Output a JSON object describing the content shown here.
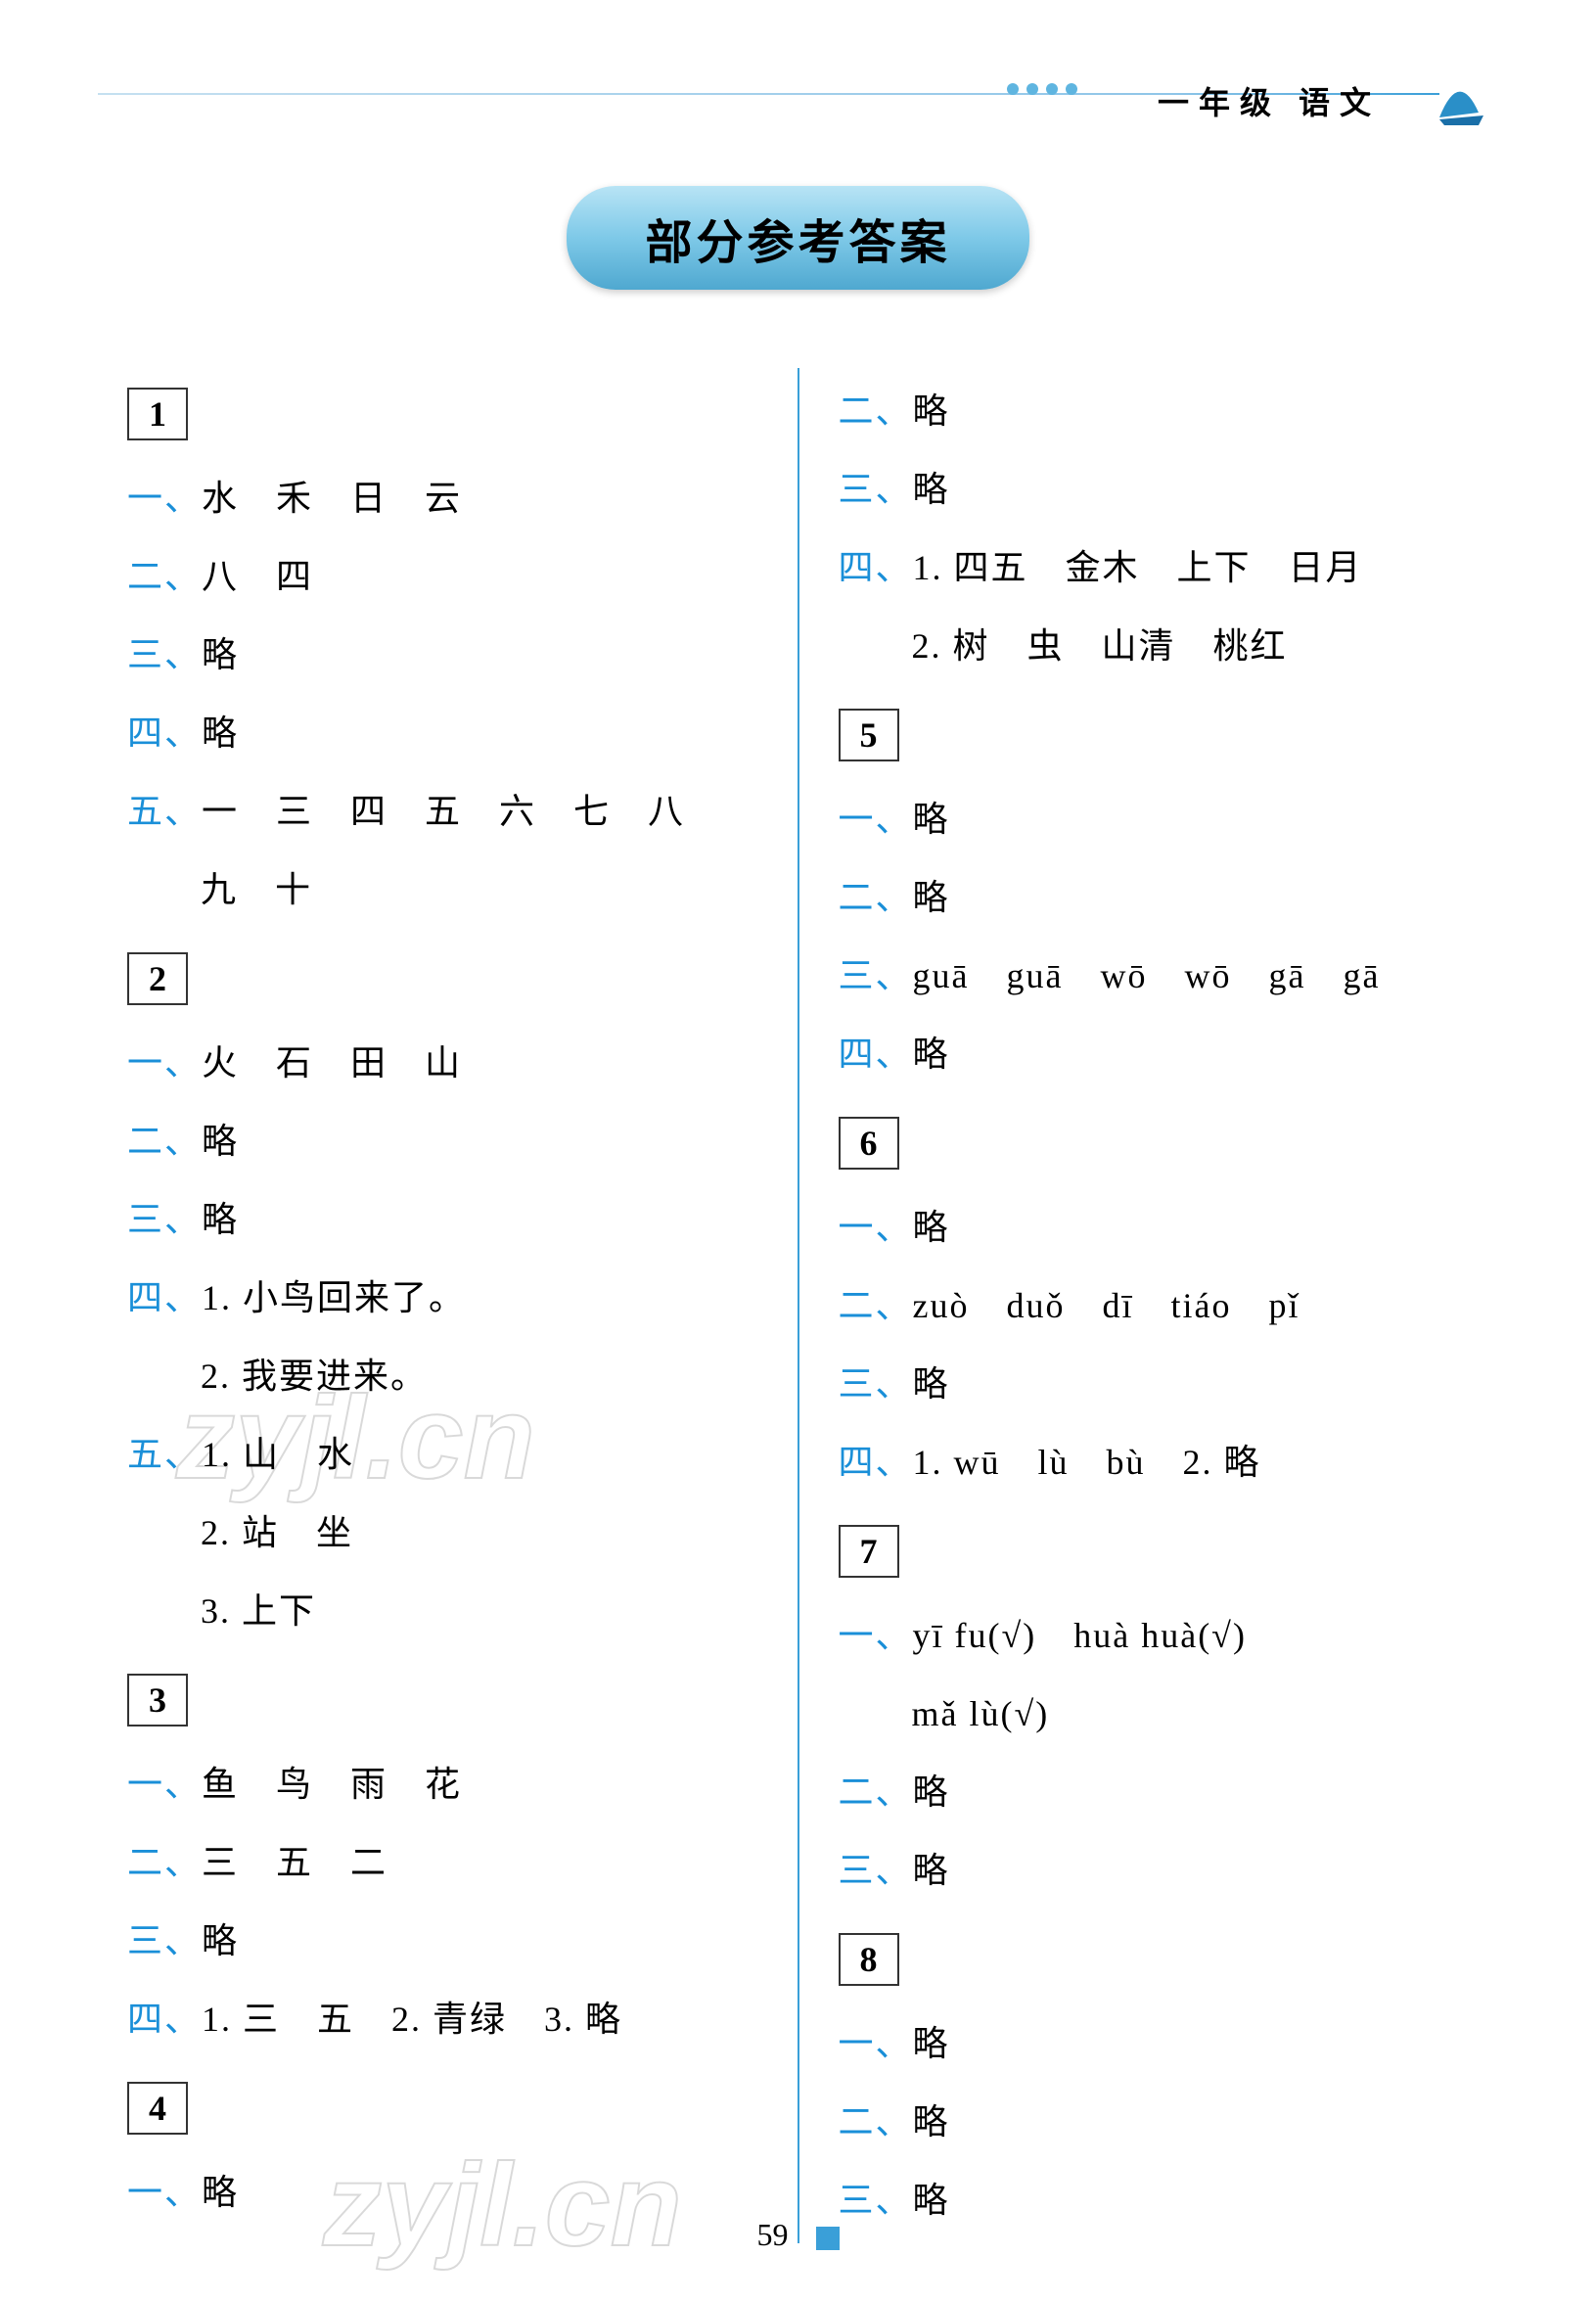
{
  "header": {
    "grade": "一年级",
    "subject": "语文"
  },
  "title": "部分参考答案",
  "colors": {
    "accent": "#1a8fd8",
    "border": "#333333",
    "pill_gradient_start": "#b8e4f5",
    "pill_gradient_end": "#4fa8d0",
    "divider": "#3a9fd8"
  },
  "watermark": "zyjl.cn",
  "page_number": "59",
  "left_column": {
    "sections": [
      {
        "num": "1",
        "lines": [
          {
            "prefix": "一、",
            "text": "水　禾　日　云"
          },
          {
            "prefix": "二、",
            "text": "八　四"
          },
          {
            "prefix": "三、",
            "text": "略"
          },
          {
            "prefix": "四、",
            "text": "略"
          },
          {
            "prefix": "五、",
            "text": "一　三　四　五　六　七　八"
          },
          {
            "prefix": "",
            "text": "九　十",
            "indent": true
          }
        ]
      },
      {
        "num": "2",
        "lines": [
          {
            "prefix": "一、",
            "text": "火　石　田　山"
          },
          {
            "prefix": "二、",
            "text": "略"
          },
          {
            "prefix": "三、",
            "text": "略"
          },
          {
            "prefix": "四、",
            "text": "1. 小鸟回来了。"
          },
          {
            "prefix": "",
            "text": "2. 我要进来。",
            "indent": true
          },
          {
            "prefix": "五、",
            "text": "1. 山　水"
          },
          {
            "prefix": "",
            "text": "2. 站　坐",
            "indent": true
          },
          {
            "prefix": "",
            "text": "3. 上下",
            "indent": true
          }
        ]
      },
      {
        "num": "3",
        "lines": [
          {
            "prefix": "一、",
            "text": "鱼　鸟　雨　花"
          },
          {
            "prefix": "二、",
            "text": "三　五　二"
          },
          {
            "prefix": "三、",
            "text": "略"
          },
          {
            "prefix": "四、",
            "text": "1. 三　五　2. 青绿　3. 略"
          }
        ]
      },
      {
        "num": "4",
        "lines": [
          {
            "prefix": "一、",
            "text": "略"
          }
        ]
      }
    ]
  },
  "right_column": {
    "pre_lines": [
      {
        "prefix": "二、",
        "text": "略"
      },
      {
        "prefix": "三、",
        "text": "略"
      },
      {
        "prefix": "四、",
        "text": "1. 四五　金木　上下　日月"
      },
      {
        "prefix": "",
        "text": "2. 树　虫　山清　桃红",
        "indent": true
      }
    ],
    "sections": [
      {
        "num": "5",
        "lines": [
          {
            "prefix": "一、",
            "text": "略"
          },
          {
            "prefix": "二、",
            "text": "略"
          },
          {
            "prefix": "三、",
            "text": "guā　guā　wō　wō　gā　gā"
          },
          {
            "prefix": "四、",
            "text": "略"
          }
        ]
      },
      {
        "num": "6",
        "lines": [
          {
            "prefix": "一、",
            "text": "略"
          },
          {
            "prefix": "二、",
            "text": "zuò　duǒ　dī　tiáo　pǐ"
          },
          {
            "prefix": "三、",
            "text": "略"
          },
          {
            "prefix": "四、",
            "text": "1. wū　lù　bù　2. 略"
          }
        ]
      },
      {
        "num": "7",
        "lines": [
          {
            "prefix": "一、",
            "text": "yī fu(√)　huà huà(√)"
          },
          {
            "prefix": "",
            "text": "mǎ lù(√)",
            "indent": true
          },
          {
            "prefix": "二、",
            "text": "略"
          },
          {
            "prefix": "三、",
            "text": "略"
          }
        ]
      },
      {
        "num": "8",
        "lines": [
          {
            "prefix": "一、",
            "text": "略"
          },
          {
            "prefix": "二、",
            "text": "略"
          },
          {
            "prefix": "三、",
            "text": "略"
          }
        ]
      }
    ]
  }
}
